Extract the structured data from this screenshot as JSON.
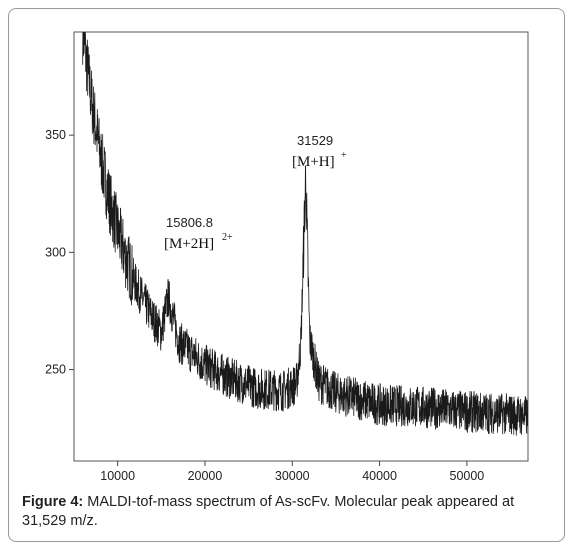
{
  "chart_data": {
    "type": "line",
    "title": "",
    "xlabel": "",
    "ylabel": "",
    "xlim": [
      5000,
      57000
    ],
    "ylim": [
      211,
      394
    ],
    "xticks": [
      10000,
      20000,
      30000,
      40000,
      50000
    ],
    "yticks": [
      250,
      300,
      350
    ],
    "grid": false,
    "legend": "none",
    "line_color": "#1a1a1a",
    "series": [
      {
        "values": [
          {
            "x": 6000,
            "y": 394
          },
          {
            "x": 7000,
            "y": 365
          },
          {
            "x": 8000,
            "y": 342
          },
          {
            "x": 9000,
            "y": 323
          },
          {
            "x": 10000,
            "y": 309
          },
          {
            "x": 11000,
            "y": 297
          },
          {
            "x": 12000,
            "y": 287
          },
          {
            "x": 13000,
            "y": 279
          },
          {
            "x": 14000,
            "y": 272
          },
          {
            "x": 15000,
            "y": 266
          },
          {
            "x": 15806.8,
            "y": 281
          },
          {
            "x": 17000,
            "y": 262
          },
          {
            "x": 20000,
            "y": 252
          },
          {
            "x": 23000,
            "y": 246
          },
          {
            "x": 26000,
            "y": 242
          },
          {
            "x": 29000,
            "y": 241
          },
          {
            "x": 30500,
            "y": 244
          },
          {
            "x": 31000,
            "y": 262
          },
          {
            "x": 31529,
            "y": 333
          },
          {
            "x": 32000,
            "y": 263
          },
          {
            "x": 33000,
            "y": 245
          },
          {
            "x": 35000,
            "y": 240
          },
          {
            "x": 40000,
            "y": 235
          },
          {
            "x": 45000,
            "y": 234
          },
          {
            "x": 50000,
            "y": 232
          },
          {
            "x": 55000,
            "y": 231
          },
          {
            "x": 57000,
            "y": 230
          }
        ]
      }
    ],
    "annotations": [
      {
        "number": "15806.8",
        "ion": "[M+2H]",
        "charge": "2+",
        "x": 15806.8
      },
      {
        "number": "31529",
        "ion": "[M+H]",
        "charge": "+",
        "x": 31529
      }
    ]
  },
  "caption": {
    "label": "Figure 4:",
    "text": " MALDI-tof-mass spectrum of As-scFv. Molecular peak appeared at 31,529 m/z."
  }
}
